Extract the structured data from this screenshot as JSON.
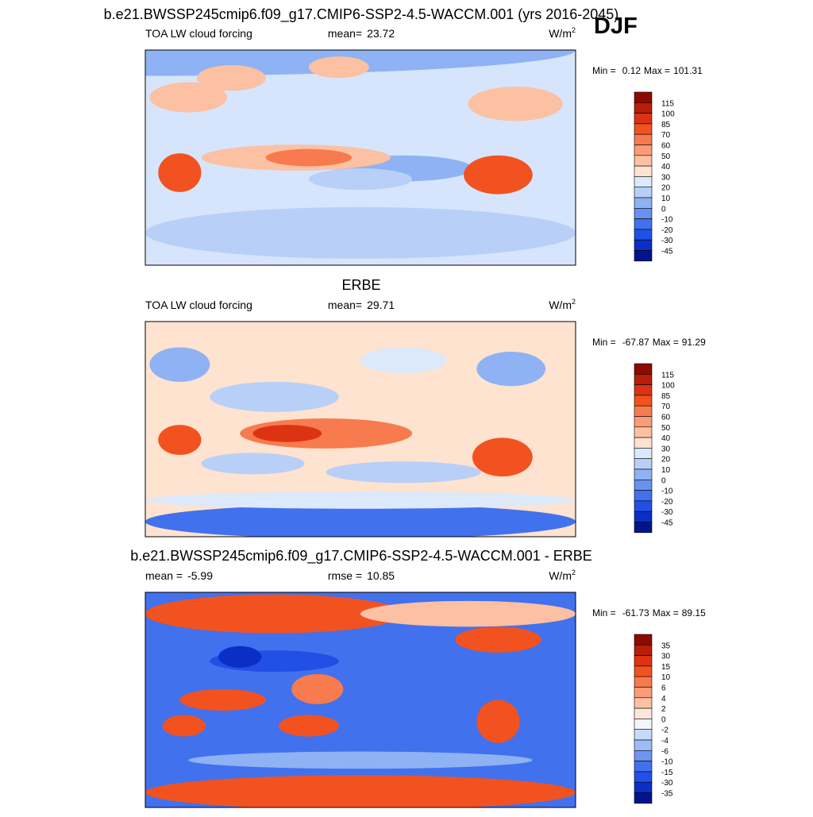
{
  "figure_title": "b.e21.BWSSP245cmip6.f09_g17.CMIP6-SSP2-4.5-WACCM.001 (yrs 2016-2045)",
  "season": "DJF",
  "panels": [
    {
      "left_text": "TOA LW cloud forcing",
      "center_stat": {
        "label": "mean=",
        "value": 23.72
      },
      "units": {
        "base": "W/m",
        "sup": "2"
      },
      "min": {
        "label": "Min =",
        "value": 0.12
      },
      "max": {
        "label": "Max =",
        "value": 101.31
      },
      "colorbar": {
        "labels": [
          115,
          100,
          85,
          70,
          60,
          50,
          40,
          30,
          20,
          10,
          0,
          -10,
          -20,
          -30,
          -45
        ],
        "colors": [
          "#8c0a00",
          "#b81e08",
          "#dc3412",
          "#f2521f",
          "#f77b4e",
          "#fa9c78",
          "#fcc0a3",
          "#fde3d0",
          "#dce9fb",
          "#b8d0f8",
          "#8eb2f3",
          "#6892ee",
          "#4271ee",
          "#2250e6",
          "#0b2fc5",
          "#00148c"
        ]
      }
    },
    {
      "title": "ERBE",
      "left_text": "TOA LW cloud forcing",
      "center_stat": {
        "label": "mean=",
        "value": 29.71
      },
      "units": {
        "base": "W/m",
        "sup": "2"
      },
      "min": {
        "label": "Min =",
        "value": -67.87
      },
      "max": {
        "label": "Max =",
        "value": 91.29
      },
      "colorbar": {
        "labels": [
          115,
          100,
          85,
          70,
          60,
          50,
          40,
          30,
          20,
          10,
          0,
          -10,
          -20,
          -30,
          -45
        ],
        "colors": [
          "#8c0a00",
          "#b81e08",
          "#dc3412",
          "#f2521f",
          "#f77b4e",
          "#fa9c78",
          "#fcc0a3",
          "#fde3d0",
          "#dce9fb",
          "#b8d0f8",
          "#8eb2f3",
          "#6892ee",
          "#4271ee",
          "#2250e6",
          "#0b2fc5",
          "#00148c"
        ]
      }
    },
    {
      "title": "b.e21.BWSSP245cmip6.f09_g17.CMIP6-SSP2-4.5-WACCM.001 - ERBE",
      "left_stat": {
        "label": "mean =",
        "value": -5.99
      },
      "center_stat": {
        "label": "rmse =",
        "value": 10.85
      },
      "units": {
        "base": "W/m",
        "sup": "2"
      },
      "min": {
        "label": "Min =",
        "value": -61.73
      },
      "max": {
        "label": "Max =",
        "value": 89.15
      },
      "colorbar": {
        "labels": [
          35,
          30,
          15,
          10,
          6,
          4,
          2,
          0,
          -2,
          -4,
          -6,
          -10,
          -15,
          -30,
          -35
        ],
        "colors": [
          "#8c0a00",
          "#b81e08",
          "#dc3412",
          "#f2521f",
          "#f77b4e",
          "#fa9c78",
          "#fcc0a3",
          "#fde7da",
          "#f2f5fd",
          "#c8daf9",
          "#9dbbf4",
          "#6f95ef",
          "#4271ee",
          "#2250e6",
          "#0b2fc5",
          "#00148c"
        ]
      }
    }
  ]
}
